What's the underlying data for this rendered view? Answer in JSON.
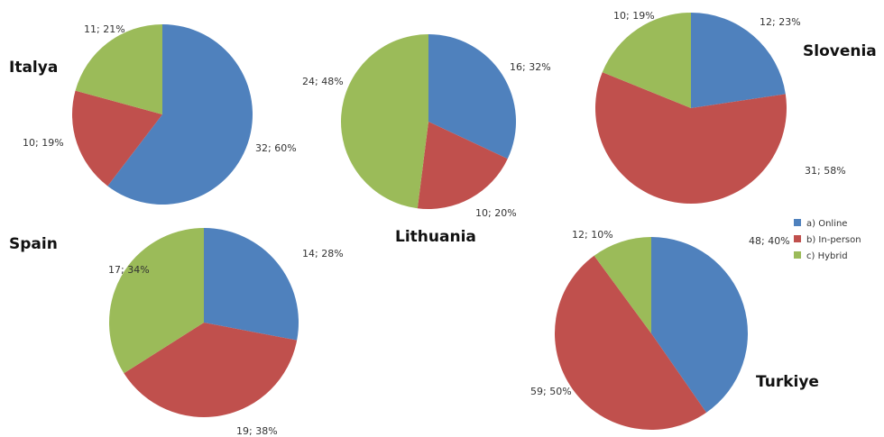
{
  "legend": {
    "labels": [
      "a)  Online",
      "b)  In-person",
      "c)  Hybrid"
    ],
    "colors": [
      "#4f81bd",
      "#c0504d",
      "#9bbb59"
    ]
  },
  "chart_data": [
    {
      "type": "pie",
      "title": "Italya",
      "values": [
        32,
        10,
        11
      ],
      "value_labels": [
        "32; 60%",
        "10; 19%",
        "11; 21%"
      ]
    },
    {
      "type": "pie",
      "title": "Lithuania",
      "values": [
        16,
        10,
        24
      ],
      "value_labels": [
        "16; 32%",
        "10; 20%",
        "24; 48%"
      ]
    },
    {
      "type": "pie",
      "title": "Slovenia",
      "values": [
        12,
        31,
        10
      ],
      "value_labels": [
        "12; 23%",
        "31; 58%",
        "10; 19%"
      ]
    },
    {
      "type": "pie",
      "title": "Spain",
      "values": [
        14,
        19,
        17
      ],
      "value_labels": [
        "14; 28%",
        "19; 38%",
        "17; 34%"
      ]
    },
    {
      "type": "pie",
      "title": "Turkiye",
      "values": [
        48,
        59,
        12
      ],
      "value_labels": [
        "48; 40%",
        "59; 50%",
        "12; 10%"
      ]
    }
  ]
}
